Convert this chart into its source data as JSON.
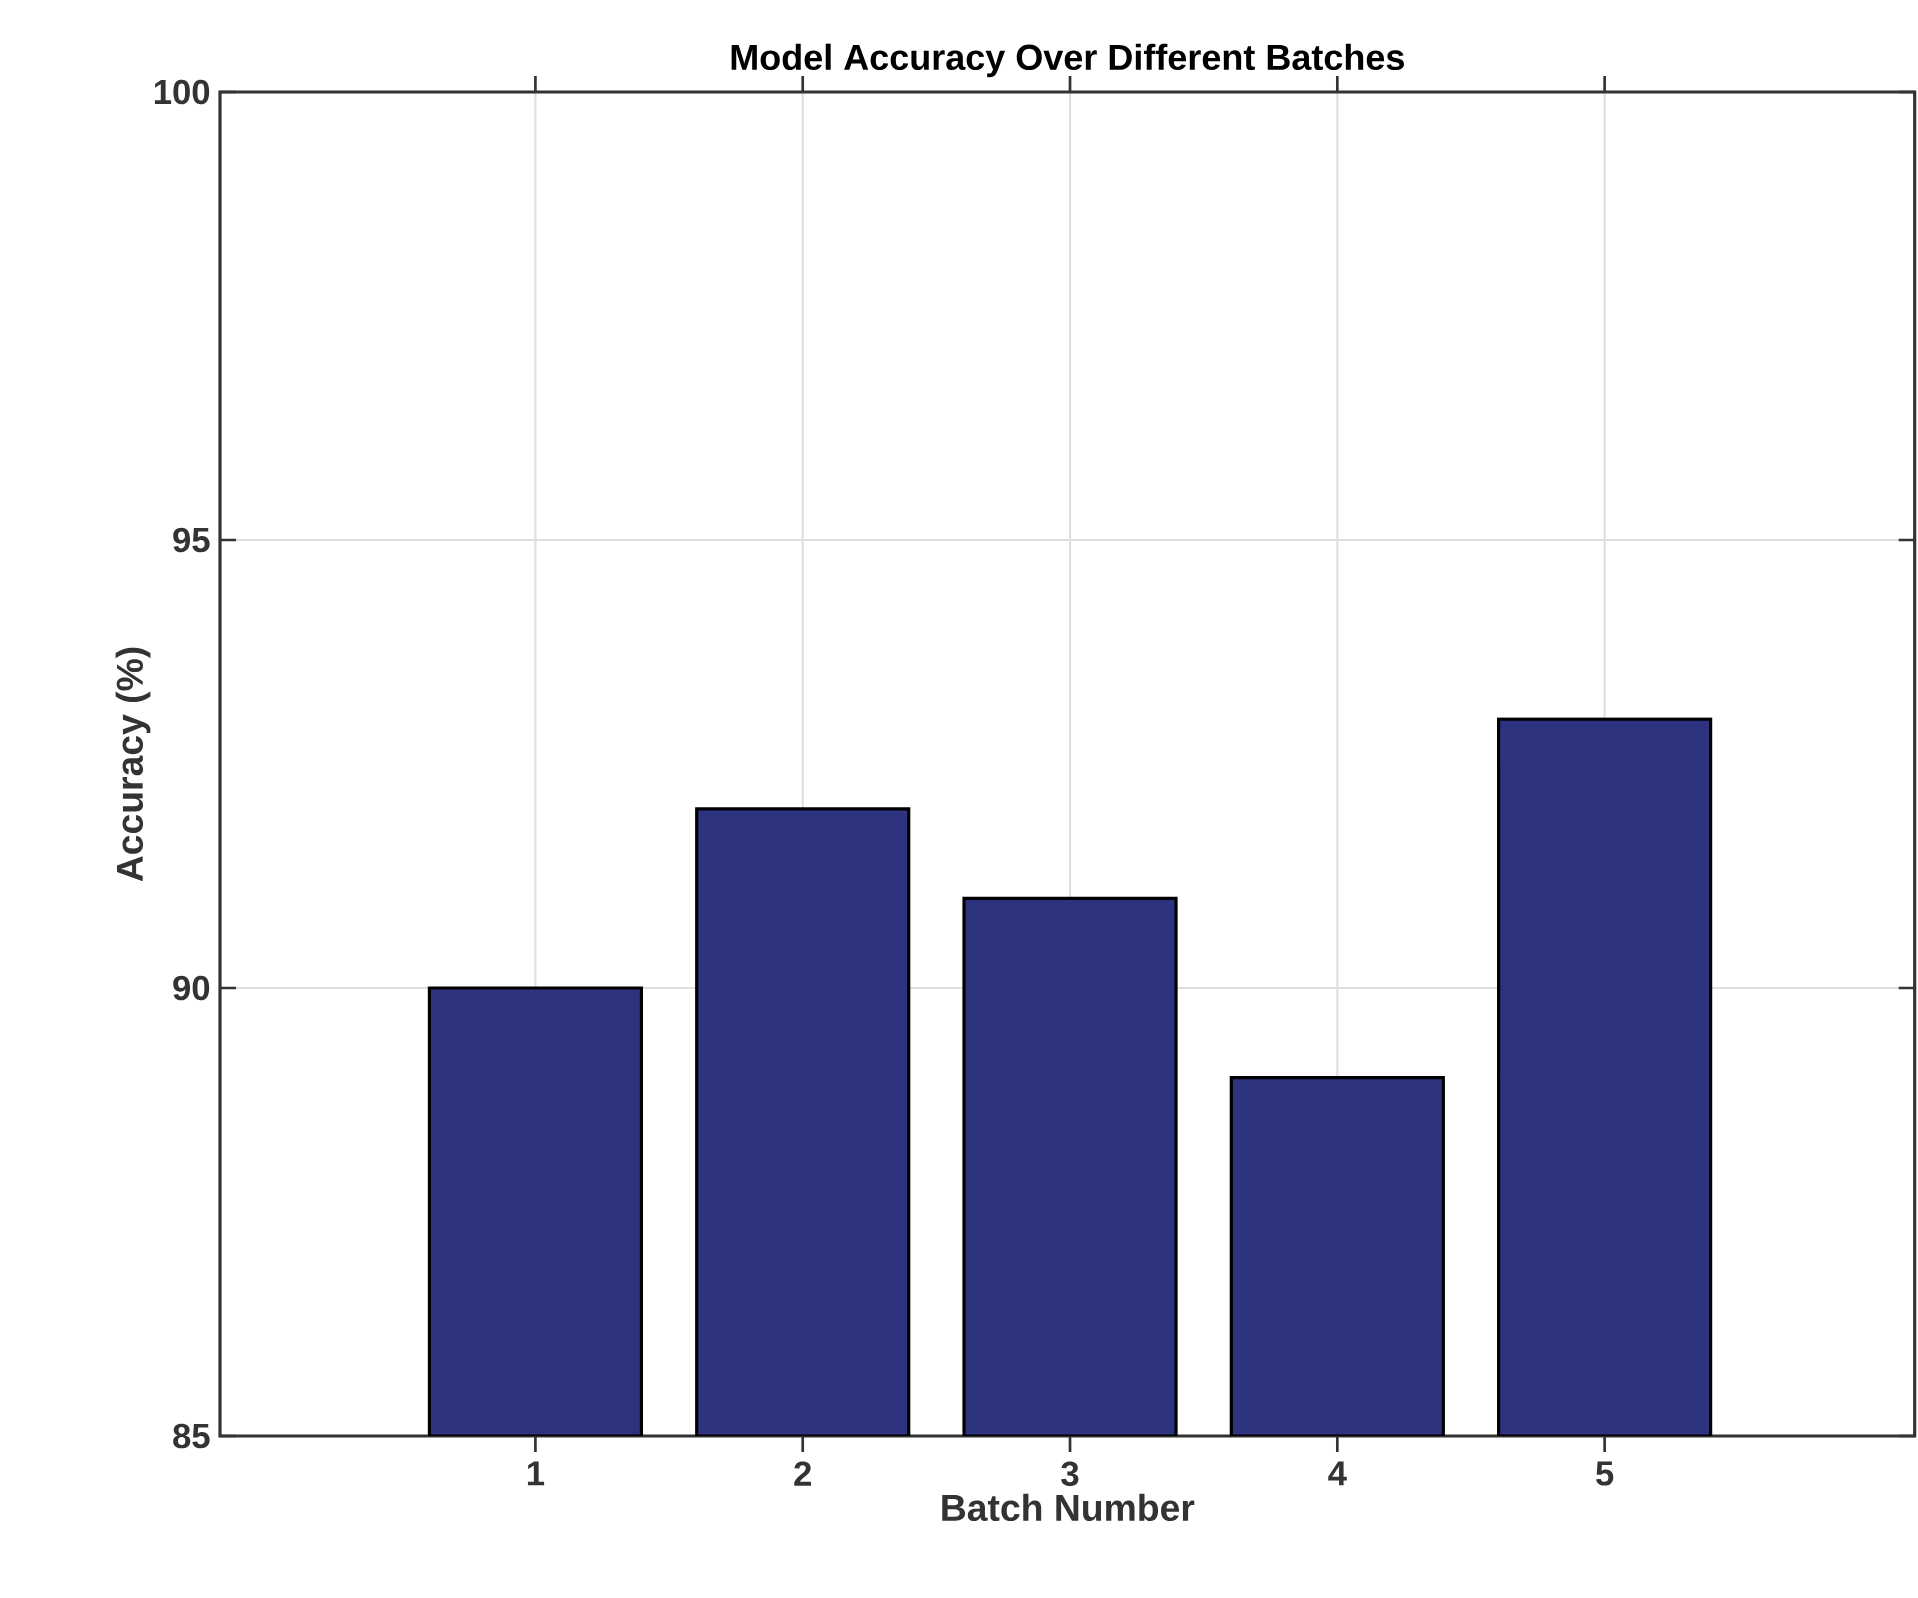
{
  "chart_data": {
    "type": "bar",
    "title": "Model Accuracy Over Different Batches",
    "xlabel": "Batch Number",
    "ylabel": "Accuracy (%)",
    "categories": [
      "1",
      "2",
      "3",
      "4",
      "5"
    ],
    "values": [
      90,
      92,
      91,
      89,
      93
    ],
    "color": "#2e3380",
    "ylim": [
      85,
      100
    ],
    "yticks": [
      85,
      90,
      95,
      100
    ],
    "grid": true
  }
}
